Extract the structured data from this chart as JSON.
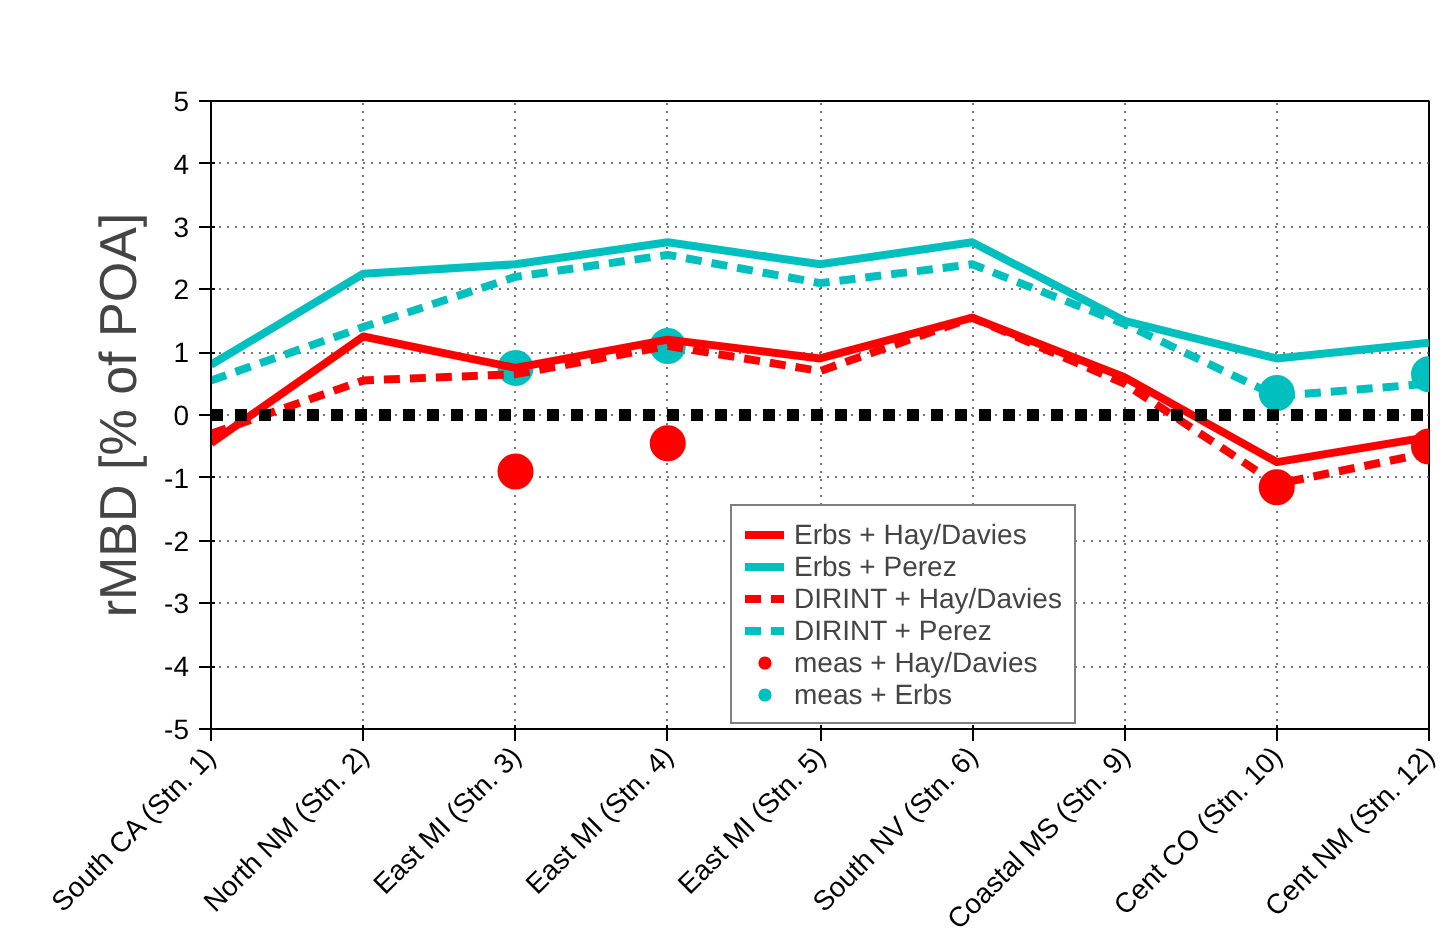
{
  "chart_data": {
    "type": "line",
    "ylabel": "rMBD [% of POA]",
    "categories": [
      "South CA (Stn. 1)",
      "North NM (Stn. 2)",
      "East MI (Stn. 3)",
      "East MI (Stn. 4)",
      "East MI (Stn. 5)",
      "South NV (Stn. 6)",
      "Coastal MS (Stn. 9)",
      "Cent CO (Stn. 10)",
      "Cent NM (Stn. 12)"
    ],
    "series": [
      {
        "name": "Erbs + Hay/Davies",
        "color": "#ff0000",
        "line_style": "solid",
        "values": [
          -0.45,
          1.25,
          0.75,
          1.2,
          0.9,
          1.55,
          0.6,
          -0.75,
          -0.35
        ]
      },
      {
        "name": "Erbs + Perez",
        "color": "#00bfbf",
        "line_style": "solid",
        "values": [
          0.8,
          2.25,
          2.4,
          2.75,
          2.4,
          2.75,
          1.5,
          0.9,
          1.15
        ]
      },
      {
        "name": "DIRINT + Hay/Davies",
        "color": "#ff0000",
        "line_style": "dashed",
        "values": [
          -0.3,
          0.55,
          0.65,
          1.1,
          0.7,
          1.55,
          0.5,
          -1.1,
          -0.6
        ]
      },
      {
        "name": "DIRINT + Perez",
        "color": "#00bfbf",
        "line_style": "dashed",
        "values": [
          0.55,
          1.4,
          2.2,
          2.55,
          2.1,
          2.4,
          1.45,
          0.3,
          0.5
        ]
      },
      {
        "name": "meas + Hay/Davies",
        "type": "scatter",
        "marker": "circle",
        "color": "#ff0000",
        "values": [
          null,
          null,
          -0.9,
          -0.45,
          null,
          null,
          null,
          -1.15,
          -0.5
        ]
      },
      {
        "name": "meas + Erbs",
        "type": "scatter",
        "marker": "circle",
        "color": "#00bfbf",
        "values": [
          null,
          null,
          0.75,
          1.1,
          null,
          null,
          null,
          0.35,
          0.65
        ]
      }
    ],
    "ref_lines": [
      {
        "axis": "y",
        "value": 0,
        "color": "#000000",
        "line_style": "dotted"
      }
    ],
    "ylim": [
      -5,
      5
    ],
    "yticks": [
      -5,
      -4,
      -3,
      -2,
      -1,
      0,
      1,
      2,
      3,
      4,
      5
    ],
    "grid": true,
    "legend": "bottom"
  }
}
